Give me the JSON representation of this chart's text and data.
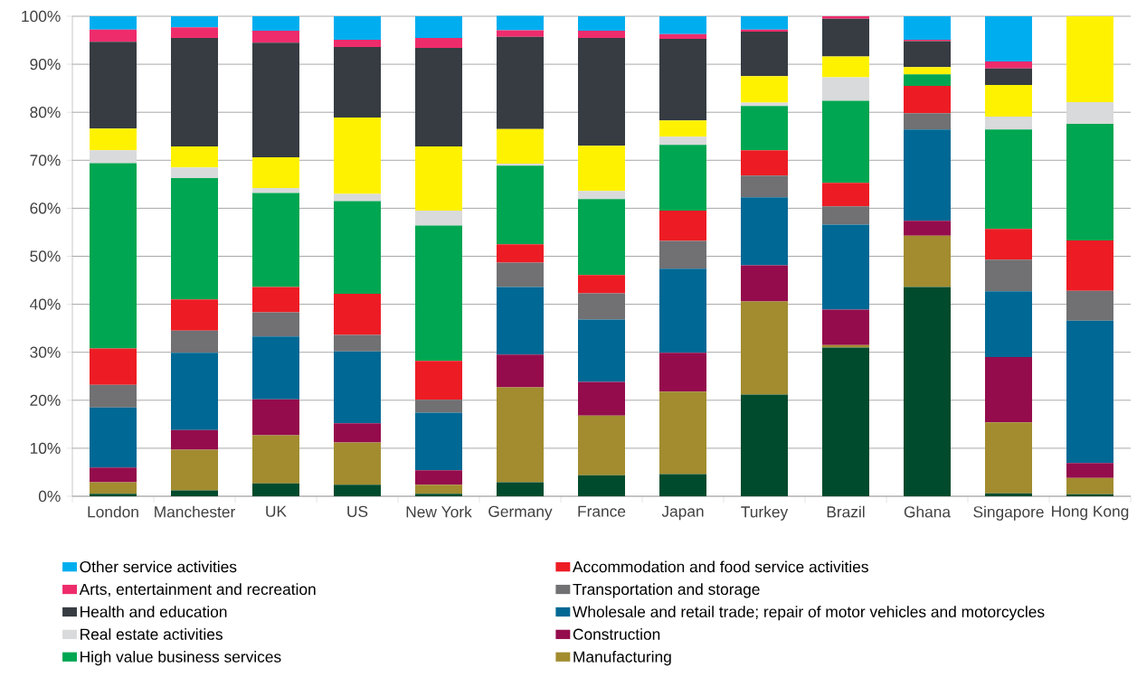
{
  "chart_data": {
    "type": "bar",
    "stacked": true,
    "categories": [
      "London",
      "Manchester",
      "UK",
      "US",
      "New York",
      "Germany",
      "France",
      "Japan",
      "Turkey",
      "Brazil",
      "Ghana",
      "Singapore",
      "Hong Kong"
    ],
    "series": [
      {
        "color": "#004b2d",
        "values": [
          0.5,
          1.2,
          2.7,
          2.4,
          0.5,
          2.9,
          4.4,
          4.6,
          21.2,
          31.0,
          43.6,
          0.6,
          0.4
        ]
      },
      {
        "name": "Manufacturing",
        "color": "#a28c2f",
        "values": [
          2.4,
          8.5,
          10.0,
          8.8,
          1.9,
          19.8,
          12.4,
          17.2,
          19.4,
          0.5,
          10.7,
          14.8,
          3.4
        ]
      },
      {
        "name": "Construction",
        "color": "#940c4c",
        "values": [
          3.1,
          4.1,
          7.5,
          4.0,
          3.0,
          6.8,
          7.0,
          8.1,
          7.5,
          7.4,
          3.1,
          13.6,
          3.1
        ]
      },
      {
        "name": "Wholesale and retail trade; repair of motor vehicles and motorcycles",
        "color": "#006894",
        "values": [
          12.5,
          16.1,
          13.1,
          15.0,
          12.0,
          14.1,
          13.0,
          17.5,
          14.2,
          17.7,
          19.0,
          13.7,
          29.7
        ]
      },
      {
        "name": "Transportation and storage",
        "color": "#717073",
        "values": [
          4.7,
          4.6,
          5.0,
          3.4,
          2.7,
          5.1,
          5.5,
          5.8,
          4.5,
          3.8,
          3.4,
          6.6,
          6.2
        ]
      },
      {
        "name": "Accommodation and food service activities",
        "color": "#ed1c24",
        "values": [
          7.6,
          6.5,
          5.3,
          8.6,
          8.1,
          3.8,
          3.8,
          6.3,
          5.3,
          4.9,
          5.7,
          6.4,
          10.5
        ]
      },
      {
        "name": "High value business services",
        "color": "#00a651",
        "values": [
          38.6,
          25.3,
          19.6,
          19.3,
          28.2,
          16.4,
          15.8,
          13.7,
          9.2,
          17.1,
          2.4,
          20.7,
          24.3
        ]
      },
      {
        "name": "Real estate activities",
        "color": "#d9dadb",
        "values": [
          2.7,
          2.2,
          1.0,
          1.5,
          3.1,
          0.4,
          1.7,
          1.7,
          0.7,
          4.9,
          0,
          2.7,
          4.5
        ]
      },
      {
        "color": "#fff200",
        "values": [
          4.5,
          4.4,
          6.4,
          15.9,
          13.4,
          7.2,
          9.4,
          3.4,
          5.5,
          4.3,
          1.5,
          6.6,
          17.9
        ]
      },
      {
        "name": "Health and education",
        "color": "#363c42",
        "values": [
          18.1,
          22.6,
          23.9,
          14.7,
          20.5,
          19.2,
          22.5,
          17.0,
          9.3,
          7.9,
          5.4,
          3.4,
          0
        ]
      },
      {
        "name": "Arts, entertainment and recreation",
        "color": "#ee2c6c",
        "values": [
          2.5,
          2.2,
          2.5,
          1.5,
          2.1,
          1.4,
          1.5,
          1.0,
          0.4,
          0.5,
          0.3,
          1.5,
          0
        ]
      },
      {
        "name": "Other service activities",
        "color": "#00aeef",
        "values": [
          2.8,
          2.3,
          3.0,
          4.9,
          4.5,
          3.0,
          3.0,
          3.7,
          2.8,
          0,
          4.9,
          9.4,
          0
        ]
      }
    ],
    "ylim": [
      0,
      100
    ],
    "yticks": [
      {
        "value": 0,
        "label": "0%"
      },
      {
        "value": 10,
        "label": "10%"
      },
      {
        "value": 20,
        "label": "20%"
      },
      {
        "value": 30,
        "label": "30%"
      },
      {
        "value": 40,
        "label": "40%"
      },
      {
        "value": 50,
        "label": "50%"
      },
      {
        "value": 60,
        "label": "60%"
      },
      {
        "value": 70,
        "label": "70%"
      },
      {
        "value": 80,
        "label": "80%"
      },
      {
        "value": 90,
        "label": "90%"
      },
      {
        "value": 100,
        "label": "100%"
      }
    ],
    "grid": "y",
    "legend": "bottom"
  }
}
